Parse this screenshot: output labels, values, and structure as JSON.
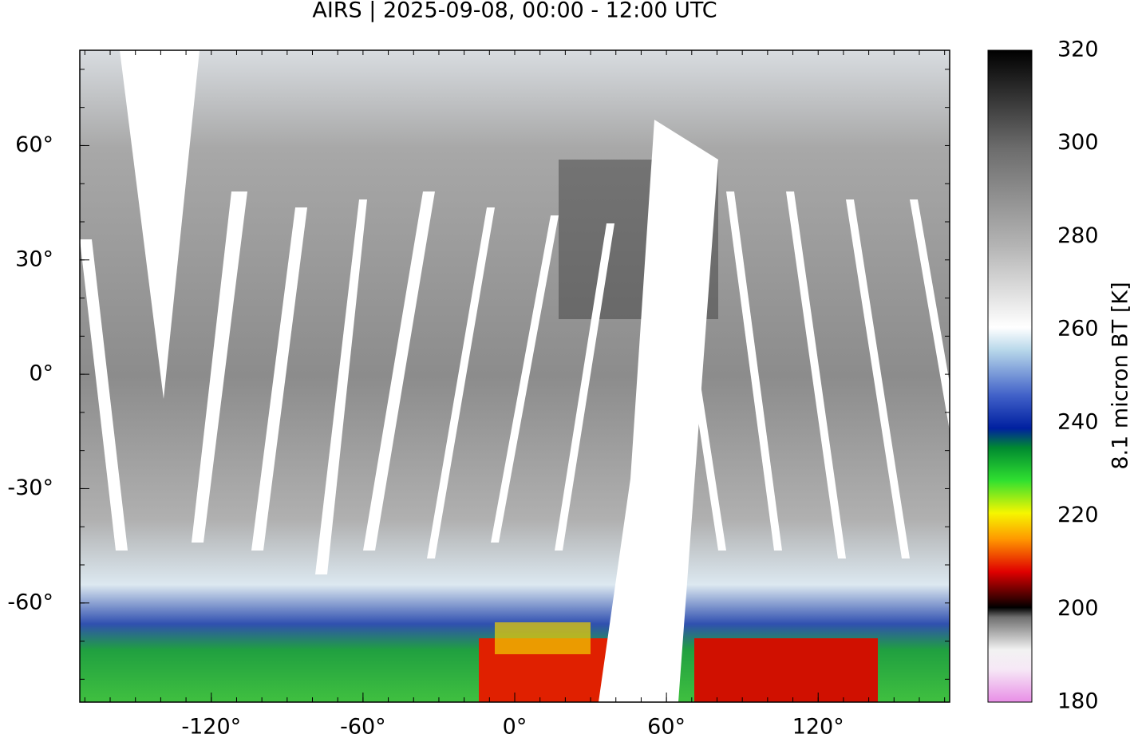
{
  "title": "AIRS | 2025-09-08, 00:00 - 12:00 UTC",
  "map": {
    "xlim": [
      -172,
      172
    ],
    "ylim": [
      -86,
      85
    ],
    "xticks": [
      {
        "value": -120,
        "label": "-120°"
      },
      {
        "value": -60,
        "label": "-60°"
      },
      {
        "value": 0,
        "label": "0°"
      },
      {
        "value": 60,
        "label": "60°"
      },
      {
        "value": 120,
        "label": "120°"
      }
    ],
    "yticks": [
      {
        "value": 60,
        "label": "60°"
      },
      {
        "value": 30,
        "label": "30°"
      },
      {
        "value": 0,
        "label": "0°"
      },
      {
        "value": -30,
        "label": "-30°"
      },
      {
        "value": -60,
        "label": "-60°"
      }
    ]
  },
  "colorbar": {
    "label": "8.1 micron BT [K]",
    "lim": [
      180,
      320
    ],
    "ticks": [
      180,
      200,
      220,
      240,
      260,
      280,
      300,
      320
    ]
  }
}
